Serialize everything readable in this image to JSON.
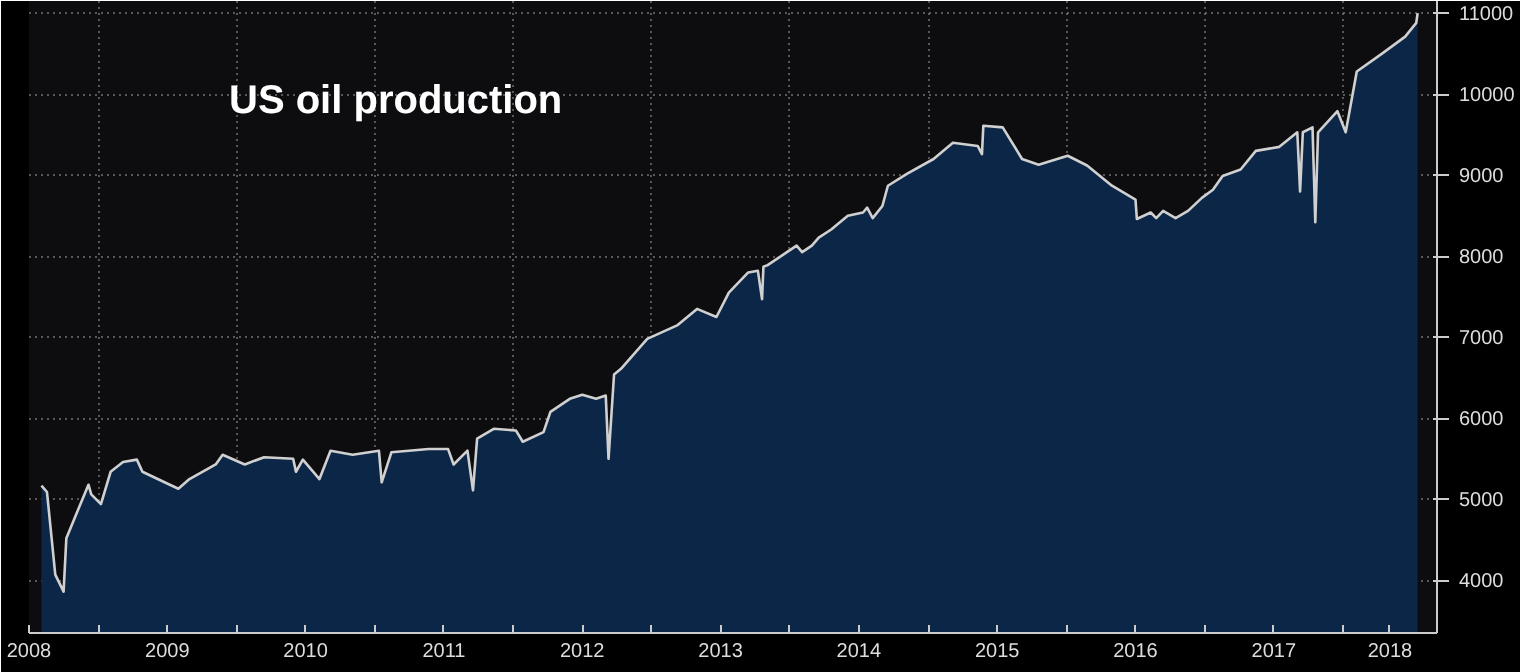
{
  "chart_data": {
    "type": "area",
    "title": "US oil production",
    "x": [
      2008.59,
      2008.63,
      2008.69,
      2008.75,
      2008.77,
      2008.84,
      2008.93,
      2008.95,
      2009.02,
      2009.09,
      2009.18,
      2009.28,
      2009.32,
      2009.48,
      2009.58,
      2009.66,
      2009.85,
      2009.9,
      2010.06,
      2010.2,
      2010.41,
      2010.43,
      2010.48,
      2010.6,
      2010.68,
      2010.84,
      2011.03,
      2011.05,
      2011.12,
      2011.39,
      2011.53,
      2011.57,
      2011.67,
      2011.71,
      2011.74,
      2011.86,
      2012.02,
      2012.07,
      2012.22,
      2012.27,
      2012.41,
      2012.5,
      2012.6,
      2012.67,
      2012.69,
      2012.73,
      2012.78,
      2012.97,
      2013.19,
      2013.33,
      2013.47,
      2013.56,
      2013.7,
      2013.77,
      2013.8,
      2013.81,
      2013.84,
      2013.98,
      2014.05,
      2014.09,
      2014.16,
      2014.21,
      2014.3,
      2014.42,
      2014.53,
      2014.56,
      2014.6,
      2014.67,
      2014.71,
      2014.85,
      2015.04,
      2015.18,
      2015.36,
      2015.39,
      2015.4,
      2015.54,
      2015.68,
      2015.8,
      2016.01,
      2016.15,
      2016.33,
      2016.5,
      2016.51,
      2016.61,
      2016.65,
      2016.7,
      2016.79,
      2016.88,
      2016.98,
      2017.06,
      2017.13,
      2017.26,
      2017.37,
      2017.54,
      2017.67,
      2017.69,
      2017.71,
      2017.78,
      2017.8,
      2017.82,
      2017.96,
      2018.02,
      2018.1,
      2018.29,
      2018.45,
      2018.53,
      2018.54
    ],
    "series": [
      {
        "color": "#d0d0d0",
        "values": [
          5170,
          5090,
          4070,
          3860,
          4520,
          4810,
          5180,
          5060,
          4940,
          5340,
          5460,
          5490,
          5340,
          5210,
          5130,
          5250,
          5430,
          5550,
          5430,
          5520,
          5500,
          5340,
          5490,
          5250,
          5600,
          5550,
          5600,
          5210,
          5580,
          5620,
          5620,
          5430,
          5600,
          5110,
          5750,
          5870,
          5850,
          5710,
          5830,
          6080,
          6240,
          6290,
          6240,
          6280,
          5500,
          6540,
          6610,
          6980,
          7150,
          7350,
          7250,
          7550,
          7800,
          7820,
          7470,
          7870,
          7890,
          8050,
          8130,
          8050,
          8130,
          8230,
          8330,
          8500,
          8540,
          8600,
          8470,
          8620,
          8870,
          9020,
          9200,
          9400,
          9360,
          9260,
          9610,
          9590,
          9200,
          9130,
          9240,
          9120,
          8870,
          8700,
          8460,
          8540,
          8470,
          8560,
          8470,
          8560,
          8720,
          8820,
          8990,
          9070,
          9300,
          9350,
          9530,
          8800,
          9530,
          9590,
          8420,
          9530,
          9790,
          9530,
          10280,
          10510,
          10710,
          10880,
          11000
        ]
      }
    ],
    "xlim": [
      2008.5,
      2018.68
    ],
    "ylim": [
      3350,
      11150
    ],
    "xticks": [
      {
        "value": 2008.5,
        "label": "2008"
      },
      {
        "value": 2009,
        "label": null
      },
      {
        "value": 2009.5,
        "label": "2009"
      },
      {
        "value": 2010,
        "label": null
      },
      {
        "value": 2010.5,
        "label": "2010"
      },
      {
        "value": 2011,
        "label": null
      },
      {
        "value": 2011.5,
        "label": "2011"
      },
      {
        "value": 2012,
        "label": null
      },
      {
        "value": 2012.5,
        "label": "2012"
      },
      {
        "value": 2013,
        "label": null
      },
      {
        "value": 2013.5,
        "label": "2013"
      },
      {
        "value": 2014,
        "label": null
      },
      {
        "value": 2014.5,
        "label": "2014"
      },
      {
        "value": 2015,
        "label": null
      },
      {
        "value": 2015.5,
        "label": "2015"
      },
      {
        "value": 2016,
        "label": null
      },
      {
        "value": 2016.5,
        "label": "2016"
      },
      {
        "value": 2017,
        "label": null
      },
      {
        "value": 2017.5,
        "label": "2017"
      },
      {
        "value": 2018,
        "label": null
      },
      {
        "value": 2018.34,
        "label": "2018"
      }
    ],
    "yticks": [
      4000,
      5000,
      6000,
      7000,
      8000,
      9000,
      10000,
      11000
    ],
    "grid": true
  }
}
